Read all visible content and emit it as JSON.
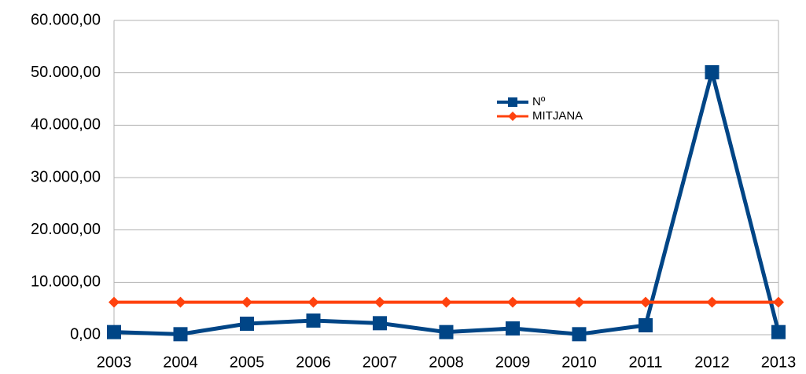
{
  "chart_data": {
    "type": "line",
    "categories": [
      "2003",
      "2004",
      "2005",
      "2006",
      "2007",
      "2008",
      "2009",
      "2010",
      "2011",
      "2012",
      "2013"
    ],
    "series": [
      {
        "name": "Nº",
        "color": "#004586",
        "marker": "square",
        "values": [
          500,
          100,
          2100,
          2700,
          2200,
          500,
          1200,
          100,
          1800,
          50100,
          500
        ]
      },
      {
        "name": "MITJANA",
        "color": "#ff420e",
        "marker": "diamond",
        "values": [
          6200,
          6200,
          6200,
          6200,
          6200,
          6200,
          6200,
          6200,
          6200,
          6200,
          6200
        ]
      }
    ],
    "ylim": [
      0,
      60000
    ],
    "yticks": [
      {
        "value": 0,
        "label": "0,00"
      },
      {
        "value": 10000,
        "label": "10.000,00"
      },
      {
        "value": 20000,
        "label": "20.000,00"
      },
      {
        "value": 30000,
        "label": "30.000,00"
      },
      {
        "value": 40000,
        "label": "40.000,00"
      },
      {
        "value": 50000,
        "label": "50.000,00"
      },
      {
        "value": 60000,
        "label": "60.000,00"
      }
    ],
    "grid": true,
    "legend": "top-right"
  }
}
